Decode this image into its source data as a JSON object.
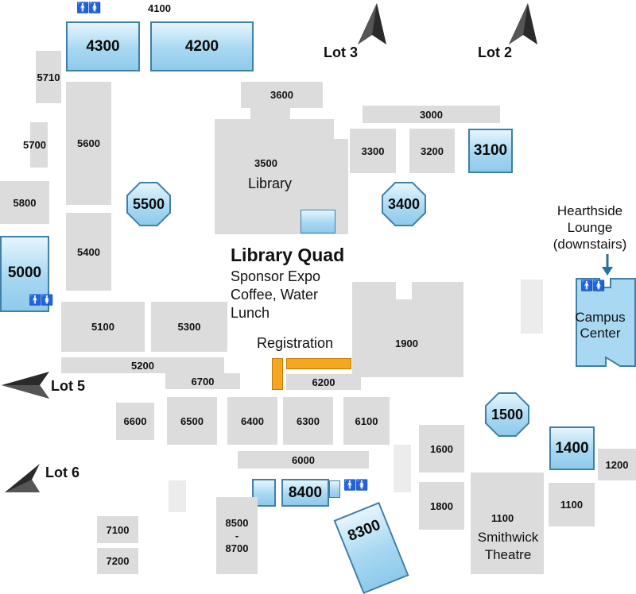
{
  "map_title": "Library Quad",
  "plain_buildings": [
    "4100",
    "5710",
    "3600",
    "3000",
    "5700",
    "5600",
    "3300",
    "3200",
    "3500",
    "Library",
    "5800",
    "5400",
    "5100",
    "5300",
    "1900",
    "5200",
    "6700",
    "6200",
    "6600",
    "6500",
    "6400",
    "6300",
    "6100",
    "1600",
    "1200",
    "6000",
    "1800",
    "1100",
    "1100",
    "7100",
    "8500",
    "-",
    "8700",
    "7200"
  ],
  "highlighted_buildings": [
    "4300",
    "4200",
    "3100",
    "5000",
    "1400",
    "8400",
    "8300"
  ],
  "octagon_buildings": [
    "5500",
    "3400",
    "1500"
  ],
  "quad_events": [
    "Sponsor Expo",
    "Coffee, Water",
    "Lunch"
  ],
  "registration_label": "Registration",
  "hearthside_label": [
    "Hearthside",
    "Lounge",
    "(downstairs)"
  ],
  "campus_center_label": [
    "Campus",
    "Center"
  ],
  "theatre_label": [
    "Smithwick",
    "Theatre"
  ],
  "lots": [
    "Lot 3",
    "Lot 2",
    "Lot 5",
    "Lot 6"
  ],
  "restroom_symbol": "🚹🚺",
  "colors": {
    "building_gray": "#dcdcdc",
    "highlight_blue": "#a8d8f2",
    "highlight_border": "#3f7fa8",
    "registration_orange": "#f5a623"
  },
  "icons": [
    "restroom-icon",
    "parking-arrow-icon",
    "down-arrow-icon"
  ]
}
